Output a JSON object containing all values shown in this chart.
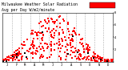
{
  "title_line1": "Milwaukee Weather Solar Radiation",
  "title_line2": "Avg per Day W/m2/minute",
  "title_fontsize": 3.5,
  "background_color": "#ffffff",
  "dot_color_main": "#ff0000",
  "dot_color_black": "#000000",
  "ylim": [
    0,
    8
  ],
  "xlim": [
    0,
    365
  ],
  "ytick_labels": [
    "8",
    "6",
    "4",
    "2",
    ""
  ],
  "ytick_positions": [
    8,
    6,
    4,
    2,
    0
  ],
  "grid_color": "#999999",
  "grid_style": "--",
  "month_starts": [
    1,
    32,
    60,
    91,
    121,
    152,
    182,
    213,
    244,
    274,
    305,
    335,
    365
  ],
  "month_labels": [
    "J",
    "F",
    "M",
    "A",
    "M",
    "J",
    "J",
    "A",
    "S",
    "O",
    "N",
    "D"
  ],
  "legend_rect_color": "#ff0000",
  "dot_size": 1.5,
  "figsize": [
    1.6,
    0.87
  ],
  "dpi": 100
}
